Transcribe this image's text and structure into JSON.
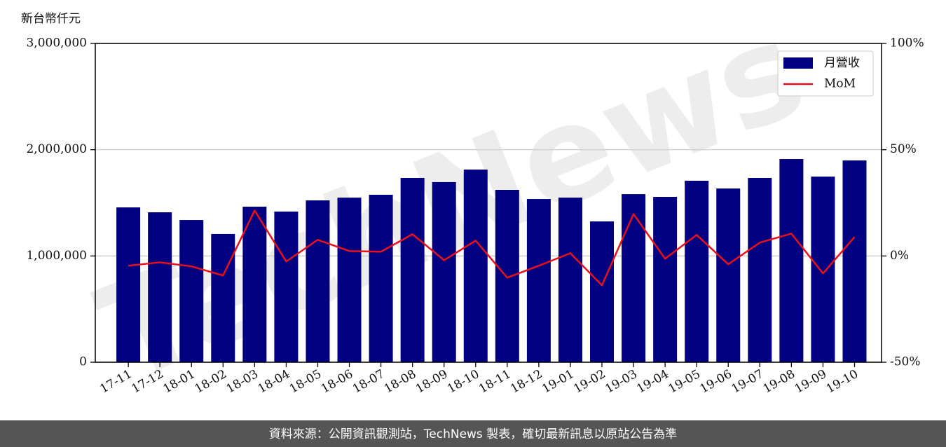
{
  "chart_data": {
    "type": "bar_line",
    "y_label": "新台幣仟元",
    "watermark": "TechNews",
    "footer": "資料來源：公開資訊觀測站，TechNews 製表，確切最新訊息以原站公告為準",
    "categories": [
      "17-11",
      "17-12",
      "18-01",
      "18-02",
      "18-03",
      "18-04",
      "18-05",
      "18-06",
      "18-07",
      "18-08",
      "18-09",
      "18-10",
      "18-11",
      "18-12",
      "19-01",
      "19-02",
      "19-03",
      "19-04",
      "19-05",
      "19-06",
      "19-07",
      "19-08",
      "19-09",
      "19-10"
    ],
    "series": [
      {
        "name": "月營收",
        "type": "bar",
        "color": "#000080",
        "values": [
          1457000,
          1411000,
          1338000,
          1207000,
          1464000,
          1418000,
          1523000,
          1549000,
          1576000,
          1734000,
          1695000,
          1813000,
          1622000,
          1536000,
          1549000,
          1325000,
          1582000,
          1556000,
          1708000,
          1635000,
          1734000,
          1912000,
          1747000,
          1899000
        ]
      },
      {
        "name": "MoM",
        "type": "line",
        "axis": "y2",
        "color": "#e8101a",
        "values": [
          -4.6,
          -3.0,
          -4.9,
          -9.2,
          21.4,
          -2.6,
          7.6,
          2.3,
          2.0,
          10.2,
          -2.0,
          7.2,
          -10.2,
          -4.6,
          1.3,
          -13.8,
          19.7,
          -1.3,
          9.9,
          -3.9,
          6.3,
          10.5,
          -8.2,
          8.9
        ]
      }
    ],
    "ylim": [
      0,
      3000000
    ],
    "yticks": [
      0,
      {
        "value": 1000000,
        "label": "1,000,000"
      },
      {
        "value": 2000000,
        "label": "2,000,000"
      },
      {
        "value": 3000000,
        "label": "3,000,000"
      }
    ],
    "y2lim": [
      -50,
      100
    ],
    "y2ticks": [
      {
        "value": -50,
        "label": "-50%"
      },
      {
        "value": 0,
        "label": "0%"
      },
      {
        "value": 50,
        "label": "50%"
      },
      {
        "value": 100,
        "label": "100%"
      }
    ],
    "grid": true,
    "legend": "upper right"
  }
}
